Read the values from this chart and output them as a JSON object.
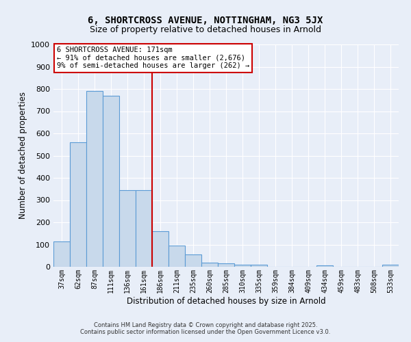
{
  "title1": "6, SHORTCROSS AVENUE, NOTTINGHAM, NG3 5JX",
  "title2": "Size of property relative to detached houses in Arnold",
  "xlabel": "Distribution of detached houses by size in Arnold",
  "ylabel": "Number of detached properties",
  "categories": [
    "37sqm",
    "62sqm",
    "87sqm",
    "111sqm",
    "136sqm",
    "161sqm",
    "186sqm",
    "211sqm",
    "235sqm",
    "260sqm",
    "285sqm",
    "310sqm",
    "335sqm",
    "359sqm",
    "384sqm",
    "409sqm",
    "434sqm",
    "459sqm",
    "483sqm",
    "508sqm",
    "533sqm"
  ],
  "values": [
    115,
    560,
    790,
    770,
    345,
    345,
    160,
    95,
    55,
    20,
    15,
    10,
    10,
    0,
    0,
    0,
    5,
    0,
    0,
    0,
    10
  ],
  "bar_color": "#c8d9eb",
  "bar_edge_color": "#5b9bd5",
  "vline_x": 5.5,
  "vline_color": "#cc0000",
  "annotation_line1": "6 SHORTCROSS AVENUE: 171sqm",
  "annotation_line2": "← 91% of detached houses are smaller (2,676)",
  "annotation_line3": "9% of semi-detached houses are larger (262) →",
  "annotation_box_color": "#ffffff",
  "annotation_box_edge": "#cc0000",
  "ylim": [
    0,
    1000
  ],
  "yticks": [
    0,
    100,
    200,
    300,
    400,
    500,
    600,
    700,
    800,
    900,
    1000
  ],
  "background_color": "#e8eef8",
  "grid_color": "#ffffff",
  "footer1": "Contains HM Land Registry data © Crown copyright and database right 2025.",
  "footer2": "Contains public sector information licensed under the Open Government Licence v3.0."
}
